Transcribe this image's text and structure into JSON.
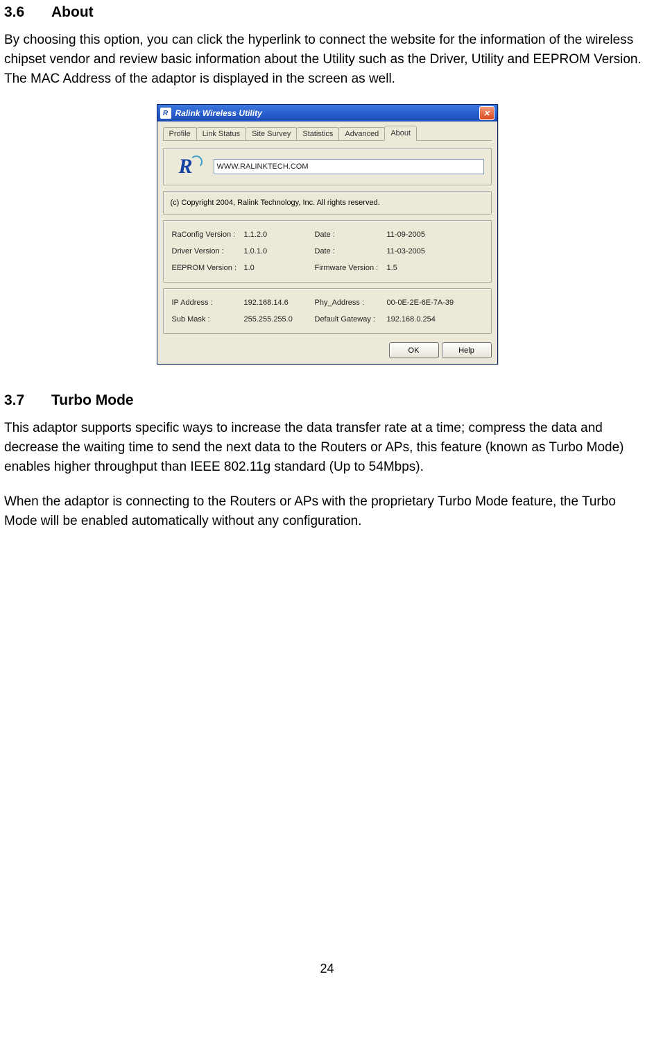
{
  "section1": {
    "number": "3.6",
    "title": "About",
    "paragraph": "By choosing this option, you can click the hyperlink to connect the website for the information of the wireless chipset vendor and review basic information about the Utility such as the Driver, Utility and EEPROM Version. The MAC Address of the adaptor is displayed in the screen as well."
  },
  "dialog": {
    "title": "Ralink Wireless Utility",
    "close_glyph": "✕",
    "tabs": [
      "Profile",
      "Link Status",
      "Site Survey",
      "Statistics",
      "Advanced",
      "About"
    ],
    "active_tab_index": 5,
    "logo_letter": "R",
    "url": "WWW.RALINKTECH.COM",
    "copyright": "(c) Copyright 2004, Ralink Technology, Inc.  All rights reserved.",
    "versions": {
      "rows": [
        {
          "l1": "RaConfig Version :",
          "v1": "1.1.2.0",
          "l2": "Date :",
          "v2": "11-09-2005"
        },
        {
          "l1": "Driver Version :",
          "v1": "1.0.1.0",
          "l2": "Date :",
          "v2": "11-03-2005"
        },
        {
          "l1": "EEPROM Version :",
          "v1": "1.0",
          "l2": "Firmware Version :",
          "v2": "1.5"
        }
      ]
    },
    "network": {
      "rows": [
        {
          "l1": "IP Address :",
          "v1": "192.168.14.6",
          "l2": "Phy_Address :",
          "v2": "00-0E-2E-6E-7A-39"
        },
        {
          "l1": "Sub Mask :",
          "v1": "255.255.255.0",
          "l2": "Default Gateway :",
          "v2": "192.168.0.254"
        }
      ]
    },
    "buttons": {
      "ok": "OK",
      "help": "Help"
    }
  },
  "section2": {
    "number": "3.7",
    "title": "Turbo Mode",
    "paragraph1": "This adaptor supports specific ways to increase the data transfer rate at a time; compress the data and decrease the waiting time to send the next data to the Routers or APs, this feature (known as Turbo Mode) enables higher throughput than IEEE 802.11g standard (Up to 54Mbps).",
    "paragraph2": "When the adaptor is connecting to the Routers or APs with the proprietary Turbo Mode feature, the Turbo Mode will be enabled automatically without any configuration."
  },
  "page_number": "24"
}
